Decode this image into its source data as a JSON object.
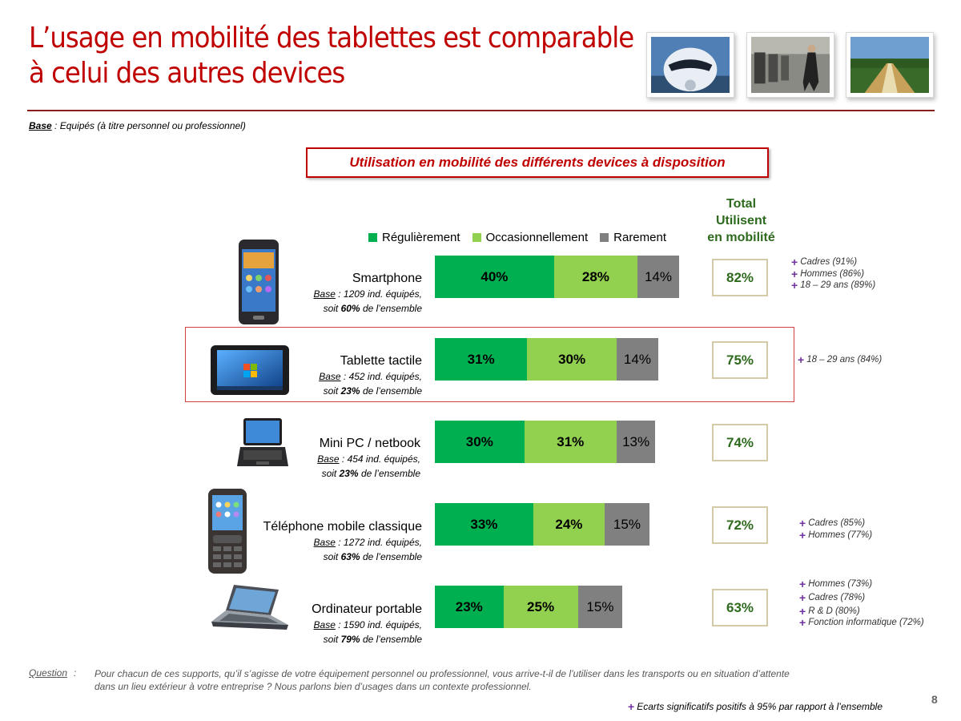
{
  "page": {
    "title_line1": "L’usage en mobilité des tablettes est comparable",
    "title_line2": "à celui des autres devices",
    "base_label": "Base",
    "base_text": " : Equipés (à titre personnel ou professionnel)",
    "page_number": "8"
  },
  "chart_data": {
    "type": "bar",
    "orientation": "horizontal",
    "stacked": true,
    "title": "Utilisation en mobilité des différents devices à disposition",
    "total_header": [
      "Total",
      "Utilisent",
      "en mobilité"
    ],
    "legend_position": "top",
    "categories": [
      "Smartphone",
      "Tablette tactile",
      "Mini PC / netbook",
      "Téléphone mobile classique",
      "Ordinateur portable"
    ],
    "series": [
      {
        "name": "Régulièrement",
        "color": "#00b050",
        "values": [
          40,
          31,
          30,
          33,
          23
        ]
      },
      {
        "name": "Occasionnellement",
        "color": "#92d050",
        "values": [
          28,
          30,
          31,
          24,
          25
        ]
      },
      {
        "name": "Rarement",
        "color": "#808080",
        "values": [
          14,
          14,
          13,
          15,
          15
        ]
      }
    ],
    "totals": [
      82,
      75,
      74,
      72,
      63
    ],
    "unit": "%"
  },
  "devices": [
    {
      "name": "Smartphone",
      "base_label": "Base",
      "base_text": " : 1209 ind. équipés,",
      "share_prefix": "soit ",
      "share": "60%",
      "share_suffix": " de l’ensemble",
      "icon": "smartphone-icon",
      "significant": [
        {
          "label": "Cadres (91%)"
        },
        {
          "label": "Hommes (86%)"
        },
        {
          "label": "18 – 29 ans (89%)"
        }
      ]
    },
    {
      "name": "Tablette tactile",
      "base_label": "Base",
      "base_text": " : 452 ind. équipés,",
      "share_prefix": "soit ",
      "share": "23%",
      "share_suffix": " de l’ensemble",
      "icon": "tablet-icon",
      "significant": [
        {
          "label": "18 – 29 ans (84%)"
        }
      ]
    },
    {
      "name": "Mini PC / netbook",
      "base_label": "Base",
      "base_text": " : 454 ind. équipés,",
      "share_prefix": "soit ",
      "share": "23%",
      "share_suffix": " de l’ensemble",
      "icon": "netbook-icon",
      "significant": []
    },
    {
      "name": "Téléphone mobile classique",
      "base_label": "Base",
      "base_text": " : 1272 ind. équipés,",
      "share_prefix": "soit ",
      "share": "63%",
      "share_suffix": " de l’ensemble",
      "icon": "mobile-phone-icon",
      "significant": [
        {
          "label": "Cadres (85%)"
        },
        {
          "label": "Hommes (77%)"
        }
      ]
    },
    {
      "name": "Ordinateur portable",
      "base_label": "Base",
      "base_text": " : 1590 ind. équipés,",
      "share_prefix": "soit ",
      "share": "79%",
      "share_suffix": " de l’ensemble",
      "icon": "laptop-icon",
      "significant": [
        {
          "label": "Hommes (73%)"
        },
        {
          "label": "Cadres (78%)"
        },
        {
          "label": "R & D (80%)"
        },
        {
          "label": "Fonction informatique (72%)"
        }
      ]
    }
  ],
  "plus_symbol": "+",
  "photos": [
    "airplane-photo",
    "station-photo",
    "railway-photo"
  ],
  "question": {
    "label": "Question",
    "colon": ":",
    "text": "Pour chacun de ces supports, qu’il s’agisse de votre équipement personnel ou professionnel, vous arrive-t-il de l’utiliser dans les transports ou en situation d’attente dans un lieu extérieur à votre entreprise ? Nous parlons bien d’usages dans un contexte professionnel."
  },
  "footnote": "Ecarts significatifs positifs à 95% par rapport à l’ensemble",
  "colors": {
    "title_red": "#c00000",
    "total_green": "#2e6a1e",
    "plus_purple": "#7030a0"
  }
}
